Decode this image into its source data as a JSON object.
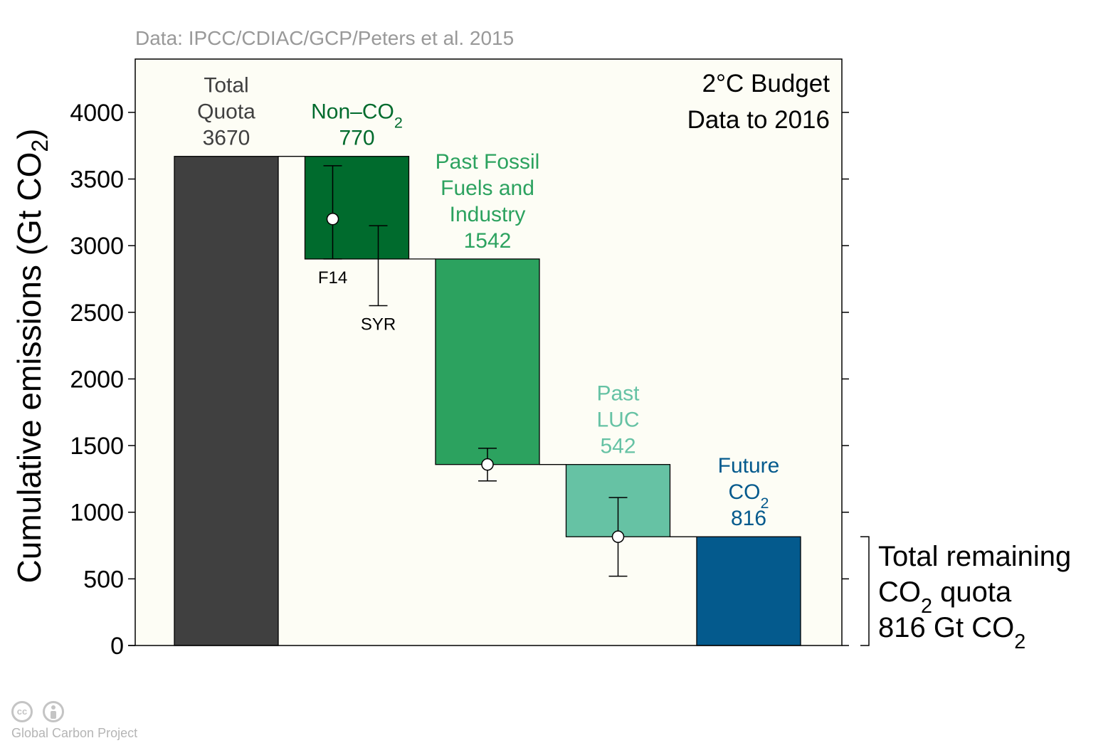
{
  "source_note": "Data: IPCC/CDIAC/GCP/Peters et al. 2015",
  "footer": {
    "label": "Global Carbon Project",
    "cc_icon": "cc-icon",
    "by_icon": "by-icon"
  },
  "colors": {
    "plot_bg": "#fdfdf5",
    "total": "#404040",
    "non_co2": "#006b2d",
    "fossil": "#2ca25f",
    "luc": "#66c2a4",
    "future": "#045a8d"
  },
  "chart_data": {
    "type": "bar",
    "subtype": "waterfall",
    "title": [
      "2°C Budget",
      "Data to 2016"
    ],
    "ylabel": "Cumulative emissions (Gt CO₂)",
    "ylim": [
      0,
      4400
    ],
    "yticks": [
      0,
      500,
      1000,
      1500,
      2000,
      2500,
      3000,
      3500,
      4000
    ],
    "grid": false,
    "bars": [
      {
        "label_lines": [
          "Total",
          "Quota",
          "3670"
        ],
        "value": 3670,
        "bottom": 0,
        "top": 3670,
        "color": "#404040",
        "label_color": "#404040"
      },
      {
        "label_lines": [
          "Non–CO₂",
          "770"
        ],
        "value": 770,
        "bottom": 2900,
        "top": 3670,
        "color": "#006b2d",
        "label_color": "#006b2d"
      },
      {
        "label_lines": [
          "Past Fossil",
          "Fuels and",
          "Industry",
          "1542"
        ],
        "value": 1542,
        "bottom": 1358,
        "top": 2900,
        "color": "#2ca25f",
        "label_color": "#2ca25f"
      },
      {
        "label_lines": [
          "Past",
          "LUC",
          "542"
        ],
        "value": 542,
        "bottom": 816,
        "top": 1358,
        "color": "#66c2a4",
        "label_color": "#66c2a4"
      },
      {
        "label_lines": [
          "Future",
          "CO₂",
          "816"
        ],
        "value": 816,
        "bottom": 0,
        "top": 816,
        "color": "#045a8d",
        "label_color": "#045a8d"
      }
    ],
    "error_bars": [
      {
        "bar": 1,
        "center": 3200,
        "low": 2900,
        "high": 3600,
        "marker": true,
        "label": "F14"
      },
      {
        "bar": 1,
        "center": null,
        "low": 2550,
        "high": 3150,
        "marker": false,
        "label": "SYR"
      },
      {
        "bar": 2,
        "center": 1358,
        "low": 1235,
        "high": 1480,
        "marker": true,
        "label": ""
      },
      {
        "bar": 3,
        "center": 816,
        "low": 520,
        "high": 1110,
        "marker": true,
        "label": ""
      }
    ],
    "bracket": {
      "from": 0,
      "to": 816,
      "label_lines": [
        "Total remaining",
        "CO₂ quota",
        "816 Gt CO₂"
      ]
    }
  }
}
